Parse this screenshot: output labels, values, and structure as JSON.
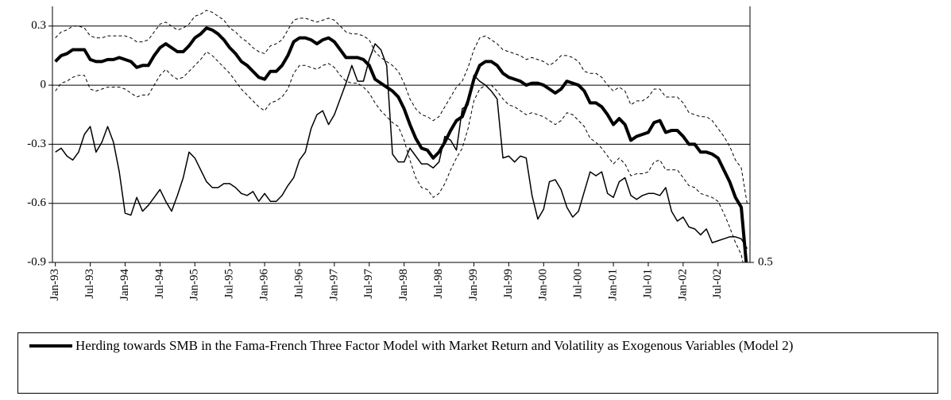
{
  "chart_data": {
    "type": "line",
    "categories": [
      "Jan-93",
      null,
      null,
      null,
      null,
      null,
      "Jul-93",
      null,
      null,
      null,
      null,
      null,
      "Jan-94",
      null,
      null,
      null,
      null,
      null,
      "Jul-94",
      null,
      null,
      null,
      null,
      null,
      "Jan-95",
      null,
      null,
      null,
      null,
      null,
      "Jul-95",
      null,
      null,
      null,
      null,
      null,
      "Jan-96",
      null,
      null,
      null,
      null,
      null,
      "Jul-96",
      null,
      null,
      null,
      null,
      null,
      "Jan-97",
      null,
      null,
      null,
      null,
      null,
      "Jul-97",
      null,
      null,
      null,
      null,
      null,
      "Jan-98",
      null,
      null,
      null,
      null,
      null,
      "Jul-98",
      null,
      null,
      null,
      null,
      null,
      "Jan-99",
      null,
      null,
      null,
      null,
      null,
      "Jul-99",
      null,
      null,
      null,
      null,
      null,
      "Jan-00",
      null,
      null,
      null,
      null,
      null,
      "Jul-00",
      null,
      null,
      null,
      null,
      null,
      "Jan-01",
      null,
      null,
      null,
      null,
      null,
      "Jul-01",
      null,
      null,
      null,
      null,
      null,
      "Jan-02",
      null,
      null,
      null,
      null,
      null,
      "Jul-02",
      null,
      null,
      null,
      null,
      null
    ],
    "series": [
      {
        "name": "Herding towards SMB in the Fama-French Three Factor Model with Market Return and Volatility as Exogenous Variables (Model 2)",
        "color": "#000000",
        "line_width": 4,
        "line_style": "solid",
        "values": [
          0.12,
          0.15,
          0.16,
          0.18,
          0.18,
          0.18,
          0.13,
          0.12,
          0.12,
          0.13,
          0.13,
          0.14,
          0.13,
          0.12,
          0.09,
          0.1,
          0.1,
          0.15,
          0.19,
          0.21,
          0.19,
          0.17,
          0.17,
          0.2,
          0.24,
          0.26,
          0.29,
          0.28,
          0.26,
          0.23,
          0.19,
          0.16,
          0.12,
          0.1,
          0.07,
          0.04,
          0.03,
          0.07,
          0.07,
          0.1,
          0.15,
          0.22,
          0.24,
          0.24,
          0.23,
          0.21,
          0.23,
          0.24,
          0.22,
          0.18,
          0.14,
          0.14,
          0.14,
          0.13,
          0.1,
          0.03,
          0.01,
          -0.01,
          -0.03,
          -0.06,
          -0.12,
          -0.2,
          -0.27,
          -0.32,
          -0.33,
          -0.37,
          -0.34,
          -0.29,
          -0.23,
          -0.18,
          -0.16,
          -0.08,
          0.03,
          0.1,
          0.12,
          0.12,
          0.1,
          0.06,
          0.04,
          0.03,
          0.02,
          0.0,
          0.01,
          0.01,
          0.0,
          -0.02,
          -0.04,
          -0.02,
          0.02,
          0.01,
          0.0,
          -0.03,
          -0.09,
          -0.09,
          -0.11,
          -0.15,
          -0.2,
          -0.17,
          -0.2,
          -0.28,
          -0.26,
          -0.25,
          -0.24,
          -0.19,
          -0.18,
          -0.24,
          -0.23,
          -0.23,
          -0.26,
          -0.3,
          -0.3,
          -0.34,
          -0.34,
          -0.35,
          -0.37,
          -0.43,
          -0.49,
          -0.57,
          -0.62,
          -0.95
        ]
      },
      {
        "color": "#000000",
        "line_width": 1,
        "line_style": "dashed",
        "values": [
          0.24,
          0.27,
          0.28,
          0.3,
          0.3,
          0.29,
          0.25,
          0.24,
          0.24,
          0.25,
          0.25,
          0.25,
          0.25,
          0.24,
          0.22,
          0.22,
          0.23,
          0.27,
          0.31,
          0.32,
          0.3,
          0.28,
          0.29,
          0.31,
          0.35,
          0.36,
          0.38,
          0.37,
          0.35,
          0.33,
          0.29,
          0.27,
          0.24,
          0.22,
          0.19,
          0.17,
          0.16,
          0.2,
          0.21,
          0.23,
          0.28,
          0.33,
          0.34,
          0.34,
          0.33,
          0.32,
          0.33,
          0.34,
          0.33,
          0.3,
          0.27,
          0.26,
          0.26,
          0.25,
          0.23,
          0.17,
          0.14,
          0.12,
          0.1,
          0.07,
          0.01,
          -0.07,
          -0.12,
          -0.15,
          -0.16,
          -0.18,
          -0.16,
          -0.11,
          -0.06,
          -0.01,
          0.02,
          0.09,
          0.18,
          0.24,
          0.25,
          0.23,
          0.21,
          0.18,
          0.17,
          0.16,
          0.15,
          0.13,
          0.14,
          0.13,
          0.12,
          0.1,
          0.12,
          0.15,
          0.15,
          0.14,
          0.12,
          0.07,
          0.06,
          0.06,
          0.04,
          0.0,
          -0.03,
          -0.01,
          -0.03,
          -0.1,
          -0.08,
          -0.08,
          -0.06,
          -0.02,
          -0.02,
          -0.06,
          -0.06,
          -0.06,
          -0.09,
          -0.14,
          -0.15,
          -0.16,
          -0.16,
          -0.18,
          -0.22,
          -0.26,
          -0.31,
          -0.38,
          -0.42,
          -0.6
        ]
      },
      {
        "color": "#000000",
        "line_width": 1,
        "line_style": "dashed",
        "values": [
          -0.03,
          0.01,
          0.02,
          0.04,
          0.05,
          0.05,
          -0.02,
          -0.03,
          -0.02,
          -0.01,
          -0.01,
          -0.01,
          -0.02,
          -0.04,
          -0.06,
          -0.05,
          -0.05,
          0.0,
          0.05,
          0.08,
          0.05,
          0.03,
          0.04,
          0.07,
          0.1,
          0.13,
          0.17,
          0.15,
          0.12,
          0.09,
          0.06,
          0.02,
          -0.02,
          -0.05,
          -0.08,
          -0.11,
          -0.13,
          -0.09,
          -0.08,
          -0.06,
          -0.02,
          0.06,
          0.1,
          0.1,
          0.09,
          0.08,
          0.1,
          0.11,
          0.09,
          0.05,
          0.02,
          0.01,
          0.01,
          -0.01,
          -0.04,
          -0.09,
          -0.13,
          -0.16,
          -0.19,
          -0.21,
          -0.28,
          -0.38,
          -0.47,
          -0.52,
          -0.53,
          -0.57,
          -0.55,
          -0.5,
          -0.43,
          -0.37,
          -0.32,
          -0.22,
          -0.08,
          -0.02,
          0.0,
          0.0,
          -0.03,
          -0.07,
          -0.1,
          -0.11,
          -0.13,
          -0.15,
          -0.14,
          -0.15,
          -0.16,
          -0.18,
          -0.2,
          -0.18,
          -0.14,
          -0.15,
          -0.18,
          -0.21,
          -0.27,
          -0.29,
          -0.32,
          -0.36,
          -0.4,
          -0.37,
          -0.4,
          -0.46,
          -0.45,
          -0.45,
          -0.44,
          -0.39,
          -0.38,
          -0.43,
          -0.43,
          -0.43,
          -0.47,
          -0.51,
          -0.52,
          -0.55,
          -0.56,
          -0.57,
          -0.59,
          -0.65,
          -0.72,
          -0.8,
          -0.86,
          -1.0
        ]
      },
      {
        "color": "#000000",
        "line_width": 1.5,
        "line_style": "solid",
        "values": [
          -0.34,
          -0.32,
          -0.36,
          -0.38,
          -0.34,
          -0.25,
          -0.21,
          -0.34,
          -0.29,
          -0.21,
          -0.29,
          -0.44,
          -0.65,
          -0.66,
          -0.57,
          -0.64,
          -0.61,
          -0.57,
          -0.53,
          -0.59,
          -0.64,
          -0.56,
          -0.47,
          -0.34,
          -0.37,
          -0.43,
          -0.49,
          -0.52,
          -0.52,
          -0.5,
          -0.5,
          -0.52,
          -0.55,
          -0.56,
          -0.54,
          -0.59,
          -0.55,
          -0.59,
          -0.59,
          -0.56,
          -0.51,
          -0.47,
          -0.38,
          -0.34,
          -0.22,
          -0.15,
          -0.13,
          -0.2,
          -0.15,
          -0.07,
          0.01,
          0.1,
          0.02,
          0.02,
          0.13,
          0.21,
          0.18,
          0.1,
          -0.35,
          -0.39,
          -0.39,
          -0.32,
          -0.36,
          -0.4,
          -0.4,
          -0.42,
          -0.39,
          -0.26,
          -0.28,
          -0.33,
          -0.12,
          -0.1,
          0.05,
          0.02,
          0.0,
          -0.03,
          -0.07,
          -0.37,
          -0.36,
          -0.39,
          -0.36,
          -0.37,
          -0.56,
          -0.68,
          -0.63,
          -0.49,
          -0.48,
          -0.53,
          -0.62,
          -0.67,
          -0.64,
          -0.54,
          -0.44,
          -0.46,
          -0.44,
          -0.55,
          -0.57,
          -0.49,
          -0.47,
          -0.56,
          -0.58,
          -0.56,
          -0.55,
          -0.55,
          -0.56,
          -0.52,
          -0.64,
          -0.69,
          -0.67,
          -0.72,
          -0.73,
          -0.76,
          -0.73,
          -0.8,
          -0.79,
          -0.78,
          -0.77,
          -0.77,
          -0.78,
          -0.83
        ]
      }
    ],
    "ylim": [
      -0.9,
      0.4
    ],
    "yticks": [
      -0.9,
      -0.6,
      -0.3,
      0,
      0.3
    ],
    "y2lim": [
      0.5,
      1.8
    ],
    "y2ticks": [
      0.5
    ],
    "grid": true,
    "legend": "bottom"
  }
}
